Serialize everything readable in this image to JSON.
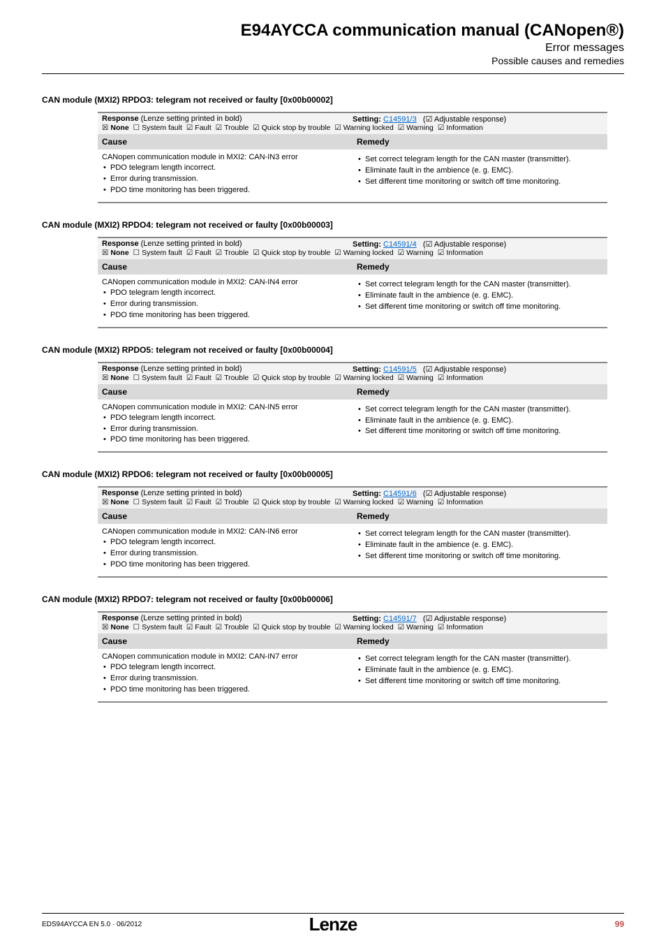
{
  "header": {
    "title": "E94AYCCA communication manual (CANopen®)",
    "subtitle1": "Error messages",
    "subtitle2": "Possible causes and remedies"
  },
  "response": {
    "label_left": "Response",
    "label_left_paren": " (Lenze setting printed in bold)",
    "setting_label": "Setting: ",
    "adjustable": " (☑ Adjustable response)",
    "checks": [
      {
        "mark": "☒",
        "label": "None",
        "bold": true
      },
      {
        "mark": "☐",
        "label": "System fault",
        "bold": false
      },
      {
        "mark": "☑",
        "label": "Fault",
        "bold": false
      },
      {
        "mark": "☑",
        "label": "Trouble",
        "bold": false
      },
      {
        "mark": "☑",
        "label": "Quick stop by trouble",
        "bold": false
      },
      {
        "mark": "☑",
        "label": "Warning locked",
        "bold": false
      },
      {
        "mark": "☑",
        "label": "Warning",
        "bold": false
      },
      {
        "mark": "☑",
        "label": "Information",
        "bold": false
      }
    ]
  },
  "table_head": {
    "cause": "Cause",
    "remedy": "Remedy"
  },
  "cause_errors": [
    "PDO telegram length incorrect.",
    "Error during transmission.",
    "PDO time monitoring has been triggered."
  ],
  "remedies": [
    "Set correct telegram length for the CAN master (transmitter).",
    "Eliminate fault in the ambience (e. g. EMC).",
    "Set different time monitoring or switch off time monitoring."
  ],
  "sections": [
    {
      "title": "CAN module (MXI2) RPDO3: telegram not received or faulty [0x00b00002]",
      "setting_link": "C14591/3",
      "cause_intro": "CANopen communication module in MXI2: CAN-IN3 error"
    },
    {
      "title": "CAN module (MXI2) RPDO4: telegram not received or faulty [0x00b00003]",
      "setting_link": "C14591/4",
      "cause_intro": "CANopen communication module in MXI2: CAN-IN4 error"
    },
    {
      "title": "CAN module (MXI2) RPDO5: telegram not received or faulty [0x00b00004]",
      "setting_link": "C14591/5",
      "cause_intro": "CANopen communication module in MXI2: CAN-IN5 error"
    },
    {
      "title": "CAN module (MXI2) RPDO6: telegram not received or faulty [0x00b00005]",
      "setting_link": "C14591/6",
      "cause_intro": "CANopen communication module in MXI2: CAN-IN6 error"
    },
    {
      "title": "CAN module (MXI2) RPDO7: telegram not received or faulty [0x00b00006]",
      "setting_link": "C14591/7",
      "cause_intro": "CANopen communication module in MXI2: CAN-IN7 error"
    }
  ],
  "footer": {
    "left": "EDS94AYCCA EN 5.0 · 06/2012",
    "logo": "Lenze",
    "page": "99"
  }
}
